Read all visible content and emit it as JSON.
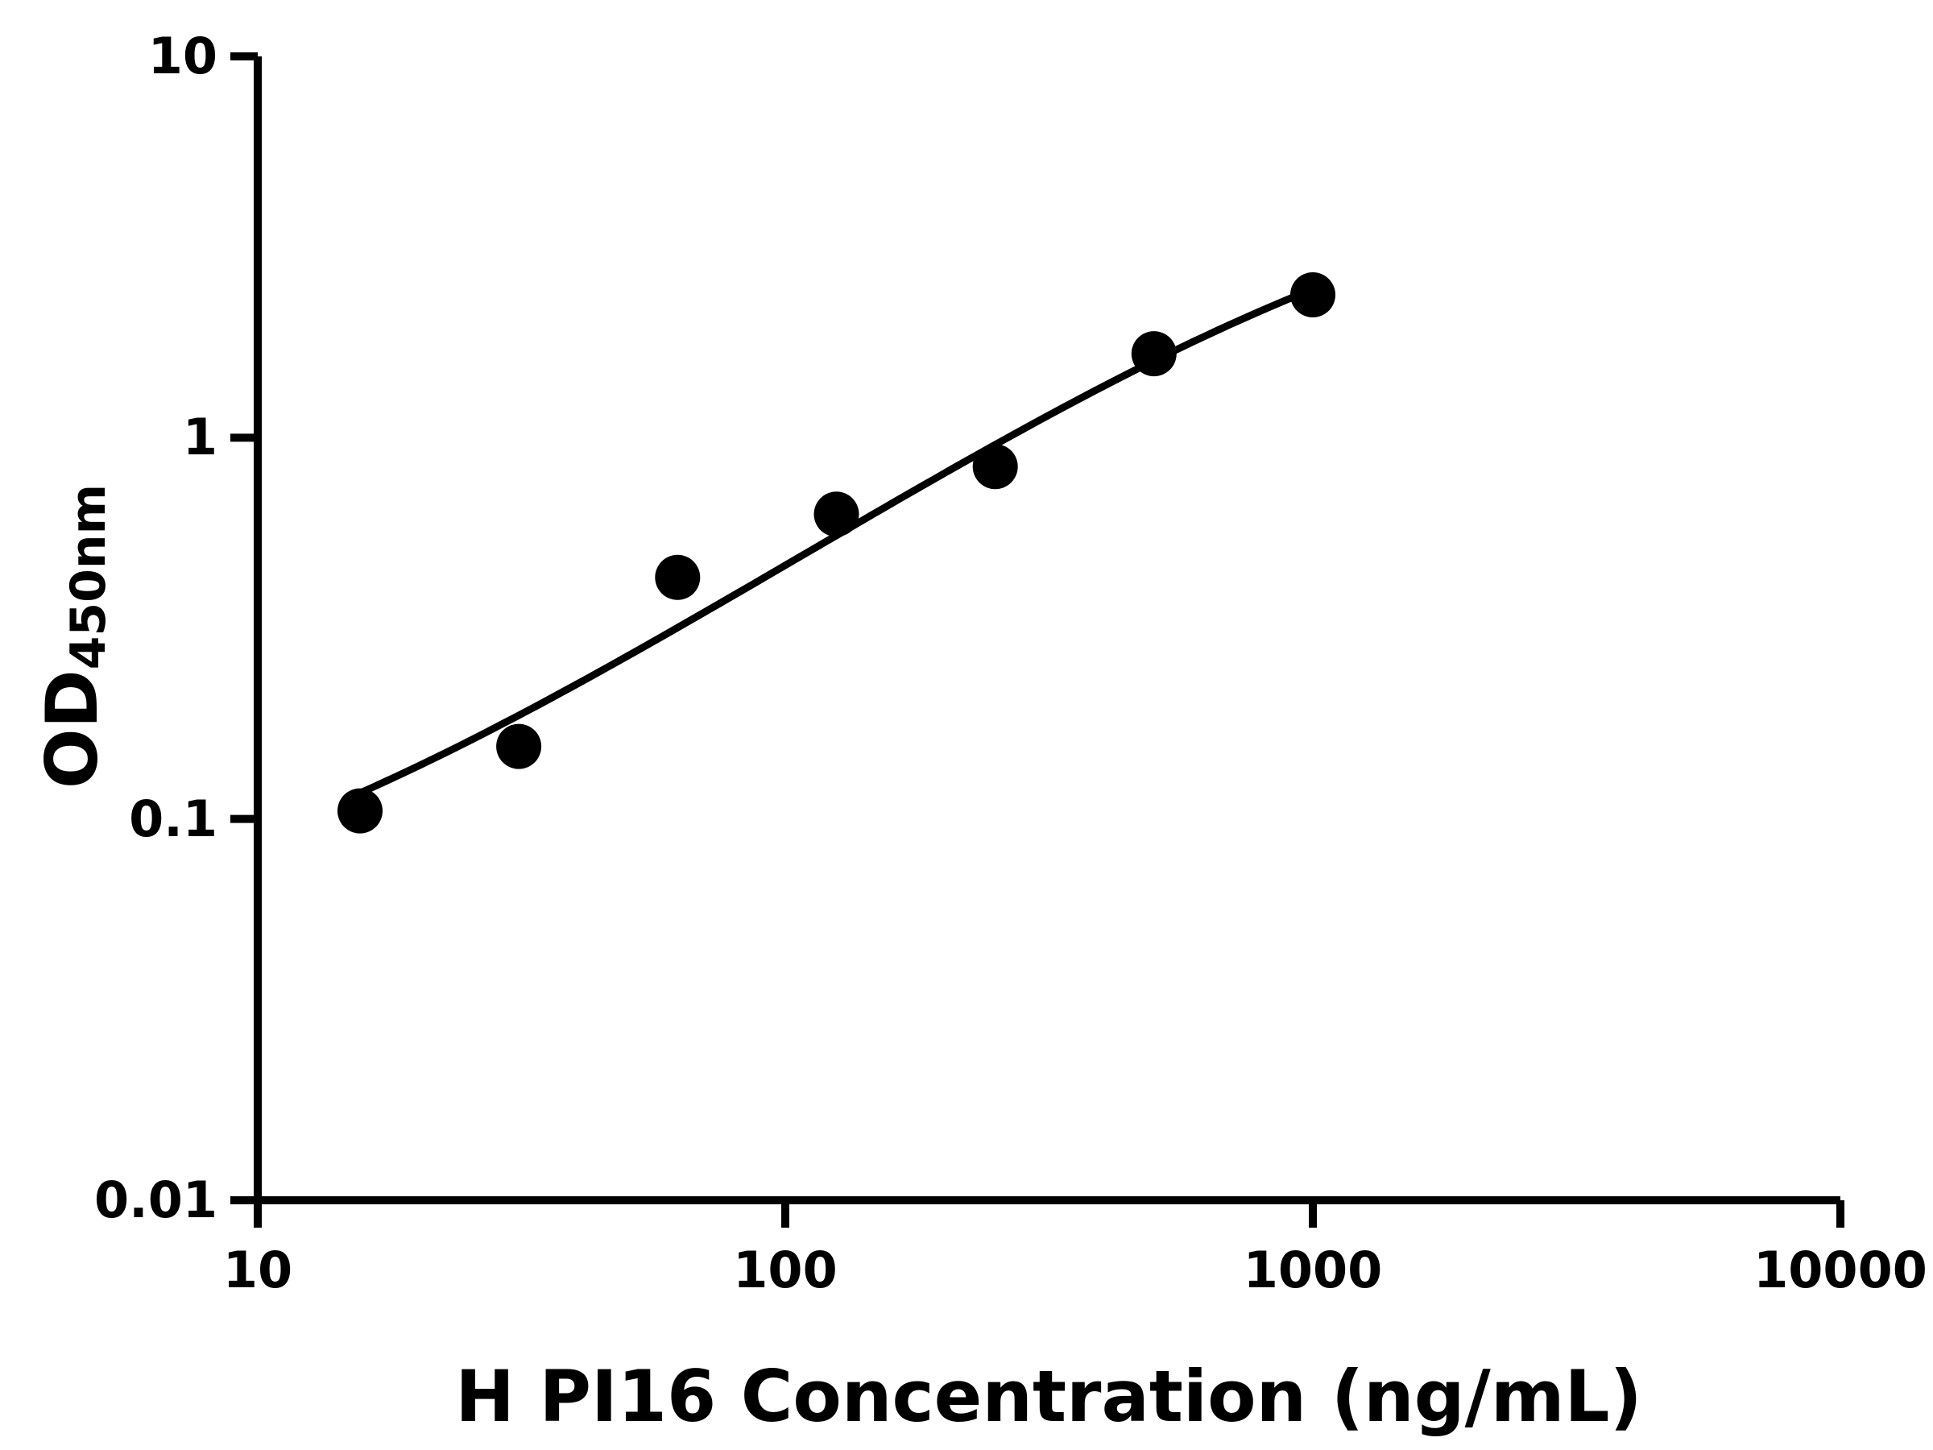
{
  "chart_data": {
    "type": "scatter",
    "title": "",
    "xlabel": "H PI16 Concentration (ng/mL)",
    "ylabel": "OD",
    "ylabel_subscript": "450nm",
    "x_scale": "log",
    "y_scale": "log",
    "xlim": [
      10,
      10000
    ],
    "ylim": [
      0.01,
      10
    ],
    "grid": false,
    "legend": false,
    "marker_color": "#000000",
    "line_color": "#000000",
    "x_ticks": [
      {
        "value": 10,
        "label": "10"
      },
      {
        "value": 100,
        "label": "100"
      },
      {
        "value": 1000,
        "label": "1000"
      },
      {
        "value": 10000,
        "label": "10000"
      }
    ],
    "y_ticks": [
      {
        "value": 0.01,
        "label": "0.01"
      },
      {
        "value": 0.1,
        "label": "0.1"
      },
      {
        "value": 1,
        "label": "1"
      },
      {
        "value": 10,
        "label": "10"
      }
    ],
    "points": [
      {
        "x": 15.625,
        "y": 0.105
      },
      {
        "x": 31.25,
        "y": 0.155
      },
      {
        "x": 62.5,
        "y": 0.43
      },
      {
        "x": 125,
        "y": 0.63
      },
      {
        "x": 250,
        "y": 0.84
      },
      {
        "x": 500,
        "y": 1.66
      },
      {
        "x": 1000,
        "y": 2.37
      }
    ],
    "fit_curve": {
      "model": "4PL",
      "bottom": 0.04,
      "top": 6.0,
      "ec50": 1500,
      "hill": 0.95,
      "x_range": [
        15.625,
        1000
      ]
    }
  }
}
